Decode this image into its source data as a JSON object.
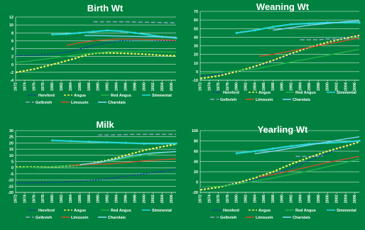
{
  "colors": {
    "background": "#00813f",
    "text": "#ffffff",
    "axis": "#ffffff"
  },
  "series_styles": {
    "Hereford": {
      "color": "#1f2fb8",
      "dash": "2,2"
    },
    "Angus": {
      "color": "#f6f25a",
      "dash": "3,2"
    },
    "Red Angus": {
      "color": "#21b24a",
      "dash": "none"
    },
    "Simmental": {
      "color": "#27d6d6",
      "dash": "none"
    },
    "Gelbvieh": {
      "color": "#9aa3cc",
      "dash": "6,3"
    },
    "Limousin": {
      "color": "#c9552b",
      "dash": "none"
    },
    "Charolais": {
      "color": "#7fd4f4",
      "dash": "none"
    }
  },
  "chart_data": [
    {
      "type": "line",
      "title": "Birth Wt",
      "ylim": [
        -4,
        12
      ],
      "yticks": [
        -4,
        -2,
        0,
        2,
        4,
        6,
        8,
        10,
        12
      ],
      "xlim": [
        1972,
        2007
      ],
      "xticks": [
        1972,
        1974,
        1976,
        1978,
        1980,
        1982,
        1984,
        1986,
        1988,
        1990,
        1992,
        1994,
        1996,
        1998,
        2000,
        2002,
        2004,
        2006
      ],
      "grid": true,
      "legend_position": "bottom",
      "legend": [
        "Hereford",
        "Angus",
        "Red Angus",
        "Simmental",
        "Gelbvieh",
        "Limousin",
        "Charolais"
      ],
      "series": [
        {
          "name": "Hereford",
          "x": [
            1972,
            1976,
            1980,
            1984,
            1988,
            1992,
            1996,
            2000,
            2004,
            2007
          ],
          "y": [
            2.2,
            2.3,
            2.6,
            3.3,
            4.5,
            5.5,
            6.1,
            6.3,
            6.0,
            5.9
          ]
        },
        {
          "name": "Angus",
          "x": [
            1972,
            1976,
            1980,
            1984,
            1988,
            1990,
            1992,
            1996,
            2000,
            2004,
            2007
          ],
          "y": [
            -2.0,
            -1.2,
            0.0,
            1.2,
            2.6,
            2.9,
            2.9,
            2.8,
            2.6,
            2.3,
            2.2
          ]
        },
        {
          "name": "Red Angus",
          "x": [
            1972,
            1976,
            1980,
            1984,
            1988,
            1992,
            1996,
            2000,
            2004,
            2007
          ],
          "y": [
            0.5,
            1.0,
            1.6,
            2.2,
            2.8,
            3.2,
            3.3,
            3.3,
            3.2,
            3.1
          ]
        },
        {
          "name": "Simmental",
          "x": [
            1980,
            1983,
            1986,
            1989,
            1992,
            1995,
            1998,
            2001,
            2004,
            2007
          ],
          "y": [
            7.6,
            7.7,
            8.0,
            8.3,
            8.6,
            8.4,
            8.0,
            7.5,
            7.0,
            6.7
          ]
        },
        {
          "name": "Gelbvieh",
          "x": [
            1989,
            1992,
            1996,
            2000,
            2004,
            2007
          ],
          "y": [
            10.8,
            10.8,
            10.8,
            10.7,
            10.6,
            10.5
          ]
        },
        {
          "name": "Limousin",
          "x": [
            1983,
            1986,
            1990,
            1994,
            1998,
            2002,
            2007
          ],
          "y": [
            4.8,
            5.5,
            6.1,
            6.4,
            6.4,
            6.3,
            6.1
          ]
        },
        {
          "name": "Charolais",
          "x": [
            1987,
            1990,
            1994,
            1998,
            2002,
            2007
          ],
          "y": [
            7.3,
            7.3,
            7.2,
            7.1,
            7.0,
            6.9
          ]
        }
      ]
    },
    {
      "type": "line",
      "title": "Weaning Wt",
      "ylim": [
        -10,
        70
      ],
      "yticks": [
        -10,
        0,
        10,
        20,
        30,
        40,
        50,
        60,
        70
      ],
      "xlim": [
        1972,
        2007
      ],
      "xticks": [
        1972,
        1974,
        1976,
        1978,
        1980,
        1982,
        1984,
        1986,
        1988,
        1990,
        1992,
        1994,
        1996,
        1998,
        2000,
        2002,
        2004,
        2006
      ],
      "grid": true,
      "legend_position": "bottom",
      "legend": [
        "Hereford",
        "Angus",
        "Red Angus",
        "Simmental",
        "Gelbvieh",
        "Limousin",
        "Charolais"
      ],
      "series": [
        {
          "name": "Hereford",
          "x": [
            1972,
            1976,
            1980,
            1984,
            1988,
            1992,
            1996,
            2000,
            2004,
            2007
          ],
          "y": [
            -5,
            -3,
            0,
            5,
            12,
            20,
            28,
            34,
            40,
            43
          ]
        },
        {
          "name": "Angus",
          "x": [
            1972,
            1976,
            1980,
            1984,
            1988,
            1992,
            1996,
            2000,
            2004,
            2007
          ],
          "y": [
            -8,
            -5,
            0,
            6,
            13,
            21,
            28,
            34,
            39,
            42
          ]
        },
        {
          "name": "Red Angus",
          "x": [
            1972,
            1976,
            1980,
            1984,
            1988,
            1992,
            1996,
            2000,
            2004,
            2007
          ],
          "y": [
            -2,
            -1,
            1,
            3,
            7,
            11,
            15,
            19,
            23,
            26
          ]
        },
        {
          "name": "Simmental",
          "x": [
            1980,
            1984,
            1988,
            1992,
            1996,
            2000,
            2004,
            2007
          ],
          "y": [
            45,
            48,
            52,
            55,
            56,
            57,
            57,
            57
          ]
        },
        {
          "name": "Gelbvieh",
          "x": [
            1994,
            1996,
            1998,
            2000,
            2002,
            2004,
            2007
          ],
          "y": [
            37,
            37,
            37,
            38,
            38,
            38,
            38
          ]
        },
        {
          "name": "Limousin",
          "x": [
            1985,
            1988,
            1992,
            1996,
            2000,
            2004,
            2007
          ],
          "y": [
            18,
            20,
            24,
            28,
            32,
            36,
            39
          ]
        },
        {
          "name": "Charolais",
          "x": [
            1988,
            1992,
            1996,
            2000,
            2004,
            2007
          ],
          "y": [
            48,
            51,
            54,
            56,
            58,
            59
          ]
        }
      ]
    },
    {
      "type": "line",
      "title": "Milk",
      "ylim": [
        -20,
        30
      ],
      "yticks": [
        -20,
        -15,
        -10,
        -5,
        0,
        5,
        10,
        15,
        20,
        25,
        30
      ],
      "xlim": [
        1972,
        2007
      ],
      "xticks": [
        1972,
        1974,
        1976,
        1978,
        1980,
        1982,
        1984,
        1986,
        1988,
        1990,
        1992,
        1994,
        1996,
        1998,
        2000,
        2002,
        2004,
        2006
      ],
      "grid": true,
      "legend_position": "bottom",
      "legend": [
        "Hereford",
        "Angus",
        "Red Angus",
        "Simmental",
        "Gelbvieh",
        "Limousin",
        "Charolais"
      ],
      "series": [
        {
          "name": "Hereford",
          "x": [
            1972,
            1976,
            1980,
            1984,
            1988,
            1992,
            1996,
            2000,
            2004,
            2007
          ],
          "y": [
            -12.5,
            -12.3,
            -12.0,
            -11.5,
            -10.5,
            -9.0,
            -7.0,
            -5.0,
            -3.0,
            -1.5
          ]
        },
        {
          "name": "Angus",
          "x": [
            1972,
            1976,
            1980,
            1984,
            1988,
            1992,
            1996,
            2000,
            2004,
            2007
          ],
          "y": [
            0.5,
            0.5,
            0.7,
            1.5,
            3.0,
            6.0,
            10.0,
            14.0,
            17.0,
            19.0
          ]
        },
        {
          "name": "Red Angus",
          "x": [
            1972,
            1976,
            1980,
            1984,
            1988,
            1992,
            1996,
            2000,
            2004,
            2007
          ],
          "y": [
            0.0,
            0.3,
            0.8,
            1.5,
            3.0,
            5.0,
            7.5,
            10.0,
            12.0,
            13.0
          ]
        },
        {
          "name": "Simmental",
          "x": [
            1980,
            1984,
            1988,
            1992,
            1996,
            2000,
            2004,
            2007
          ],
          "y": [
            22.0,
            21.5,
            21.0,
            20.5,
            20.0,
            19.5,
            19.5,
            19.5
          ]
        },
        {
          "name": "Gelbvieh",
          "x": [
            1990,
            1993,
            1996,
            1999,
            2002,
            2005,
            2007
          ],
          "y": [
            26.5,
            26.5,
            26.8,
            27.0,
            27.0,
            27.0,
            27.0
          ]
        },
        {
          "name": "Limousin",
          "x": [
            1984,
            1988,
            1992,
            1996,
            2000,
            2004,
            2007
          ],
          "y": [
            2.0,
            2.5,
            3.0,
            4.0,
            5.5,
            6.5,
            7.0
          ]
        },
        {
          "name": "Charolais",
          "x": [
            1986,
            1990,
            1994,
            1998,
            2002,
            2007
          ],
          "y": [
            2.5,
            4.0,
            7.0,
            10.0,
            12.0,
            13.0
          ]
        }
      ]
    },
    {
      "type": "line",
      "title": "Yearling Wt",
      "ylim": [
        -20,
        100
      ],
      "yticks": [
        -20,
        0,
        20,
        40,
        60,
        80,
        100
      ],
      "xlim": [
        1972,
        2007
      ],
      "xticks": [
        1972,
        1974,
        1976,
        1978,
        1980,
        1982,
        1984,
        1986,
        1988,
        1990,
        1992,
        1994,
        1996,
        1998,
        2000,
        2002,
        2004,
        2006
      ],
      "grid": true,
      "legend_position": "bottom",
      "legend": [
        "Hereford",
        "Angus",
        "Red Angus",
        "Simmental",
        "Gelbvieh",
        "Limousin",
        "Charolais"
      ],
      "series": [
        {
          "name": "Hereford",
          "x": [
            1972,
            1976,
            1980,
            1984,
            1988,
            1992,
            1996,
            2000,
            2004,
            2007
          ],
          "y": [
            -12,
            -8,
            -2,
            5,
            15,
            28,
            42,
            56,
            70,
            80
          ]
        },
        {
          "name": "Angus",
          "x": [
            1972,
            1976,
            1980,
            1984,
            1988,
            1992,
            1996,
            2000,
            2004,
            2007
          ],
          "y": [
            -15,
            -10,
            -2,
            8,
            20,
            35,
            48,
            60,
            70,
            78
          ]
        },
        {
          "name": "Red Angus",
          "x": [
            1972,
            1976,
            1980,
            1984,
            1988,
            1992,
            1996,
            2000,
            2004,
            2007
          ],
          "y": [
            -10,
            -8,
            -4,
            2,
            8,
            15,
            22,
            30,
            38,
            45
          ]
        },
        {
          "name": "Simmental",
          "x": [
            1980,
            1984,
            1988,
            1992,
            1996,
            2000,
            2004,
            2007
          ],
          "y": [
            56,
            60,
            65,
            70,
            74,
            76,
            78,
            80
          ]
        },
        {
          "name": "Gelbvieh",
          "x": [
            1993,
            1995,
            1997,
            1999
          ],
          "y": [
            50,
            50,
            50,
            51
          ]
        },
        {
          "name": "Limousin",
          "x": [
            1985,
            1988,
            1992,
            1996,
            2000,
            2004,
            2007
          ],
          "y": [
            10,
            15,
            22,
            30,
            38,
            45,
            50
          ]
        },
        {
          "name": "Charolais",
          "x": [
            1984,
            1988,
            1992,
            1996,
            2000,
            2004,
            2007
          ],
          "y": [
            55,
            60,
            66,
            72,
            78,
            84,
            88
          ]
        }
      ]
    }
  ]
}
